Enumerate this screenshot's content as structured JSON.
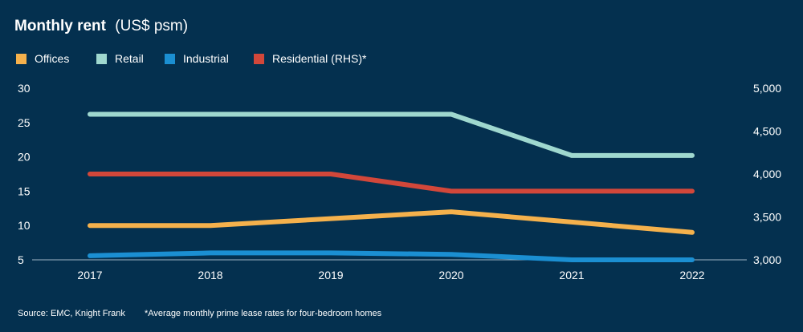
{
  "chart_data": {
    "type": "line",
    "title": "Monthly rent",
    "subtitle": "(US$ psm)",
    "categories": [
      "2017",
      "2018",
      "2019",
      "2020",
      "2021",
      "2022"
    ],
    "y_left": {
      "ylim": [
        5,
        30
      ],
      "ticks": [
        "30",
        "25",
        "20",
        "15",
        "10",
        "5"
      ],
      "tick_values": [
        30,
        25,
        20,
        15,
        10,
        5
      ]
    },
    "y_right": {
      "ylim": [
        3000,
        5000
      ],
      "ticks": [
        "5,000",
        "4,500",
        "4,000",
        "3,500",
        "3,000"
      ],
      "tick_values": [
        5000,
        4500,
        4000,
        3500,
        3000
      ]
    },
    "series": [
      {
        "name": "Offices",
        "axis": "left",
        "color": "#f5b14c",
        "values": [
          10,
          10,
          11,
          12,
          10.5,
          9
        ]
      },
      {
        "name": "Retail",
        "axis": "left",
        "color": "#9fd8cf",
        "values": [
          26.2,
          26.2,
          26.2,
          26.2,
          20.2,
          20.2
        ]
      },
      {
        "name": "Industrial",
        "axis": "left",
        "color": "#1b8fd2",
        "values": [
          5.6,
          6,
          6,
          5.8,
          5,
          5
        ]
      },
      {
        "name": "Residential (RHS)*",
        "axis": "right",
        "color": "#d2473a",
        "values": [
          4000,
          4000,
          4000,
          3800,
          3800,
          3800
        ]
      }
    ],
    "grid": false,
    "legend_position": "top-left"
  },
  "footer": {
    "source": "Source: EMC, Knight Frank",
    "note": "*Average monthly prime lease rates for four-bedroom homes"
  }
}
